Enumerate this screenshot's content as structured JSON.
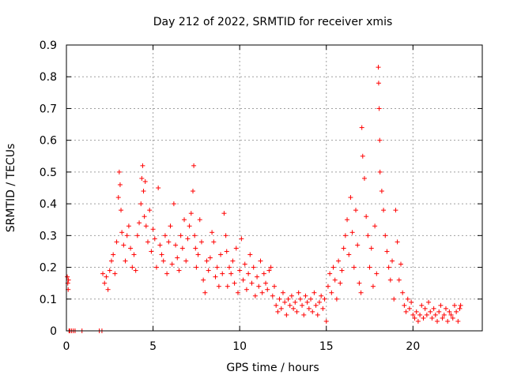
{
  "chart_data": {
    "type": "scatter",
    "title": "Day 212 of 2022, SRMTID for receiver xmis",
    "xlabel": "GPS time / hours",
    "ylabel": "SRMTID / TECUs",
    "xlim": [
      0,
      24
    ],
    "ylim": [
      0,
      0.9
    ],
    "xticks": [
      0,
      5,
      10,
      15,
      20
    ],
    "xtick_labels": [
      "0",
      "5",
      "10",
      "15",
      "20"
    ],
    "yticks": [
      0,
      0.1,
      0.2,
      0.3,
      0.4,
      0.5,
      0.6,
      0.7,
      0.8,
      0.9
    ],
    "ytick_labels": [
      "0",
      "0.1",
      "0.2",
      "0.3",
      "0.4",
      "0.5",
      "0.6",
      "0.7",
      "0.8",
      "0.9"
    ],
    "grid": true,
    "marker": "+",
    "color": "#ff0000",
    "series": [
      {
        "name": "SRMTID",
        "x": [
          0.05,
          0.08,
          0.1,
          0.12,
          0.15,
          0.2,
          0.3,
          0.4,
          0.5,
          0.9,
          1.9,
          2.05,
          2.1,
          2.2,
          2.3,
          2.4,
          2.5,
          2.6,
          2.7,
          2.8,
          2.9,
          3.0,
          3.05,
          3.1,
          3.15,
          3.2,
          3.3,
          3.4,
          3.5,
          3.6,
          3.7,
          3.8,
          3.9,
          4.0,
          4.1,
          4.2,
          4.3,
          4.35,
          4.4,
          4.45,
          4.5,
          4.55,
          4.6,
          4.7,
          4.8,
          4.9,
          5.0,
          5.1,
          5.2,
          5.3,
          5.4,
          5.5,
          5.6,
          5.7,
          5.8,
          5.9,
          6.0,
          6.1,
          6.2,
          6.3,
          6.4,
          6.5,
          6.6,
          6.7,
          6.8,
          6.9,
          7.0,
          7.1,
          7.2,
          7.3,
          7.35,
          7.4,
          7.45,
          7.5,
          7.6,
          7.7,
          7.8,
          7.9,
          8.0,
          8.1,
          8.2,
          8.3,
          8.4,
          8.5,
          8.6,
          8.7,
          8.8,
          8.9,
          9.0,
          9.1,
          9.2,
          9.25,
          9.3,
          9.4,
          9.5,
          9.6,
          9.7,
          9.8,
          9.9,
          10.0,
          10.1,
          10.2,
          10.3,
          10.4,
          10.5,
          10.6,
          10.7,
          10.8,
          10.9,
          11.0,
          11.1,
          11.2,
          11.3,
          11.4,
          11.5,
          11.6,
          11.7,
          11.8,
          11.9,
          12.0,
          12.1,
          12.2,
          12.3,
          12.4,
          12.5,
          12.6,
          12.7,
          12.8,
          12.9,
          13.0,
          13.1,
          13.2,
          13.3,
          13.4,
          13.5,
          13.6,
          13.7,
          13.8,
          13.9,
          14.0,
          14.1,
          14.2,
          14.3,
          14.4,
          14.5,
          14.6,
          14.7,
          14.8,
          14.9,
          15.0,
          15.1,
          15.2,
          15.3,
          15.4,
          15.5,
          15.6,
          15.7,
          15.8,
          15.9,
          16.0,
          16.1,
          16.2,
          16.3,
          16.4,
          16.5,
          16.6,
          16.7,
          16.8,
          16.9,
          17.0,
          17.05,
          17.1,
          17.2,
          17.3,
          17.4,
          17.5,
          17.6,
          17.7,
          17.8,
          17.9,
          18.0,
          18.02,
          18.05,
          18.08,
          18.1,
          18.2,
          18.3,
          18.4,
          18.5,
          18.6,
          18.7,
          18.8,
          18.9,
          19.0,
          19.1,
          19.2,
          19.3,
          19.4,
          19.5,
          19.6,
          19.7,
          19.8,
          19.9,
          20.0,
          20.1,
          20.2,
          20.3,
          20.4,
          20.5,
          20.6,
          20.7,
          20.8,
          20.9,
          21.0,
          21.1,
          21.2,
          21.3,
          21.4,
          21.5,
          21.6,
          21.7,
          21.8,
          21.9,
          22.0,
          22.1,
          22.2,
          22.3,
          22.4,
          22.5,
          22.6,
          22.7,
          22.75
        ],
        "y": [
          0.17,
          0.15,
          0.13,
          0.16,
          0.0,
          0.0,
          0.0,
          0.0,
          0.0,
          0.0,
          0.0,
          0.0,
          0.18,
          0.15,
          0.17,
          0.13,
          0.19,
          0.22,
          0.24,
          0.18,
          0.28,
          0.42,
          0.5,
          0.46,
          0.38,
          0.31,
          0.27,
          0.22,
          0.3,
          0.33,
          0.26,
          0.2,
          0.24,
          0.19,
          0.3,
          0.34,
          0.4,
          0.48,
          0.52,
          0.44,
          0.36,
          0.47,
          0.33,
          0.28,
          0.38,
          0.25,
          0.32,
          0.29,
          0.2,
          0.45,
          0.27,
          0.24,
          0.22,
          0.3,
          0.18,
          0.28,
          0.33,
          0.21,
          0.4,
          0.27,
          0.23,
          0.19,
          0.3,
          0.26,
          0.35,
          0.22,
          0.29,
          0.33,
          0.37,
          0.44,
          0.52,
          0.3,
          0.26,
          0.2,
          0.24,
          0.35,
          0.28,
          0.16,
          0.12,
          0.22,
          0.19,
          0.23,
          0.31,
          0.28,
          0.17,
          0.2,
          0.14,
          0.24,
          0.18,
          0.37,
          0.3,
          0.25,
          0.14,
          0.2,
          0.18,
          0.22,
          0.15,
          0.26,
          0.12,
          0.19,
          0.29,
          0.16,
          0.21,
          0.13,
          0.18,
          0.24,
          0.15,
          0.2,
          0.11,
          0.17,
          0.14,
          0.22,
          0.12,
          0.18,
          0.15,
          0.13,
          0.19,
          0.2,
          0.11,
          0.14,
          0.08,
          0.06,
          0.1,
          0.07,
          0.12,
          0.09,
          0.05,
          0.1,
          0.08,
          0.11,
          0.07,
          0.09,
          0.06,
          0.12,
          0.1,
          0.08,
          0.05,
          0.11,
          0.09,
          0.07,
          0.1,
          0.06,
          0.12,
          0.08,
          0.05,
          0.09,
          0.11,
          0.07,
          0.1,
          0.03,
          0.14,
          0.18,
          0.12,
          0.2,
          0.16,
          0.1,
          0.22,
          0.15,
          0.19,
          0.26,
          0.3,
          0.35,
          0.24,
          0.42,
          0.31,
          0.2,
          0.38,
          0.27,
          0.15,
          0.12,
          0.64,
          0.55,
          0.48,
          0.36,
          0.3,
          0.2,
          0.26,
          0.14,
          0.33,
          0.18,
          0.83,
          0.78,
          0.7,
          0.6,
          0.5,
          0.44,
          0.38,
          0.3,
          0.25,
          0.2,
          0.16,
          0.22,
          0.1,
          0.38,
          0.28,
          0.16,
          0.21,
          0.12,
          0.08,
          0.06,
          0.1,
          0.07,
          0.09,
          0.05,
          0.04,
          0.06,
          0.03,
          0.05,
          0.08,
          0.04,
          0.07,
          0.05,
          0.09,
          0.06,
          0.04,
          0.07,
          0.05,
          0.03,
          0.06,
          0.08,
          0.04,
          0.05,
          0.07,
          0.03,
          0.06,
          0.05,
          0.04,
          0.08,
          0.06,
          0.03,
          0.07,
          0.08
        ]
      }
    ]
  }
}
